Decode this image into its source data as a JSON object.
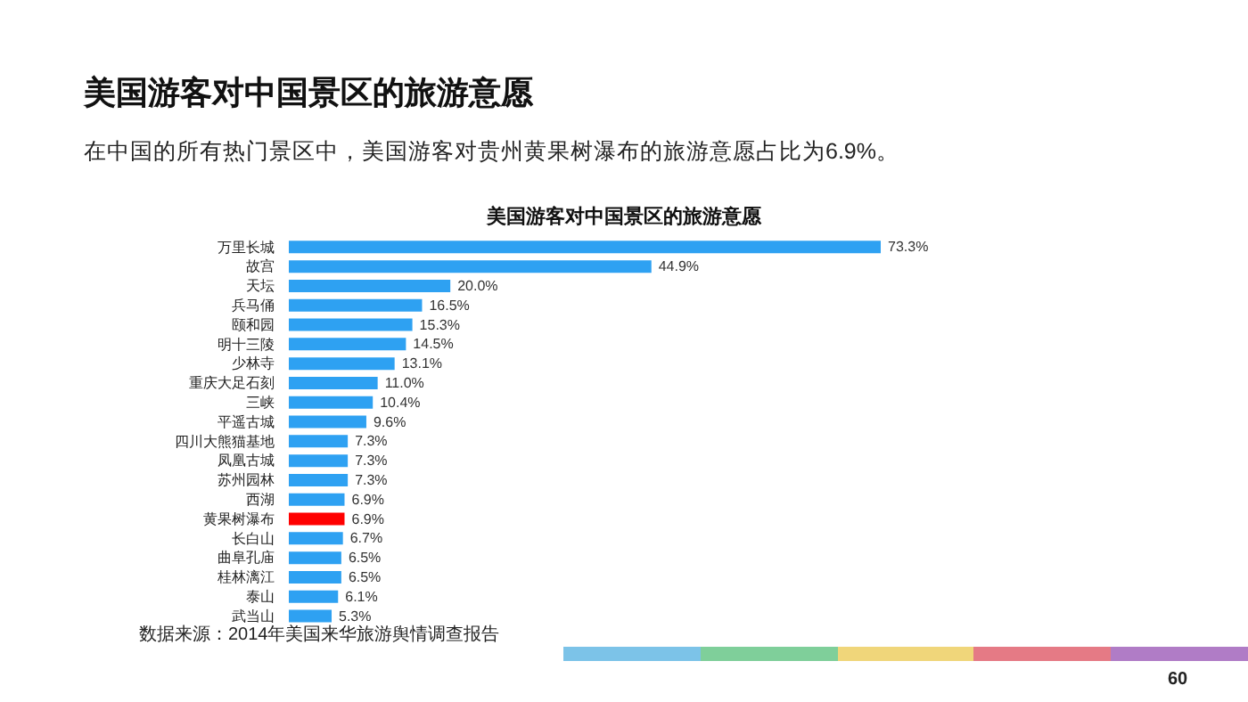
{
  "chart_data": {
    "type": "bar",
    "orientation": "horizontal",
    "title": "美国游客对中国景区的旅游意愿",
    "subtitle": "在中国的所有热门景区中，美国游客对贵州黄果树瀑布的旅游意愿占比为6.9%。",
    "categories": [
      "万里长城",
      "故宫",
      "天坛",
      "兵马俑",
      "颐和园",
      "明十三陵",
      "少林寺",
      "重庆大足石刻",
      "三峡",
      "平遥古城",
      "四川大熊猫基地",
      "凤凰古城",
      "苏州园林",
      "西湖",
      "黄果树瀑布",
      "长白山",
      "曲阜孔庙",
      "桂林漓江",
      "泰山",
      "武当山"
    ],
    "values": [
      73.3,
      44.9,
      20.0,
      16.5,
      15.3,
      14.5,
      13.1,
      11.0,
      10.4,
      9.6,
      7.3,
      7.3,
      7.3,
      6.9,
      6.9,
      6.7,
      6.5,
      6.5,
      6.1,
      5.3
    ],
    "value_labels": [
      "73.3%",
      "44.9%",
      "20.0%",
      "16.5%",
      "15.3%",
      "14.5%",
      "13.1%",
      "11.0%",
      "10.4%",
      "9.6%",
      "7.3%",
      "7.3%",
      "7.3%",
      "6.9%",
      "6.9%",
      "6.7%",
      "6.5%",
      "6.5%",
      "6.1%",
      "5.3%"
    ],
    "colors": [
      "#2ea1f2",
      "#2ea1f2",
      "#2ea1f2",
      "#2ea1f2",
      "#2ea1f2",
      "#2ea1f2",
      "#2ea1f2",
      "#2ea1f2",
      "#2ea1f2",
      "#2ea1f2",
      "#2ea1f2",
      "#2ea1f2",
      "#2ea1f2",
      "#2ea1f2",
      "#ff0000",
      "#2ea1f2",
      "#2ea1f2",
      "#2ea1f2",
      "#2ea1f2",
      "#2ea1f2"
    ],
    "annotations": [
      "美国游客对中国景区的旅游意愿",
      "数据来源：2014年美国来华旅游舆情调查报告",
      "60"
    ],
    "grid": false,
    "legend": false
  }
}
